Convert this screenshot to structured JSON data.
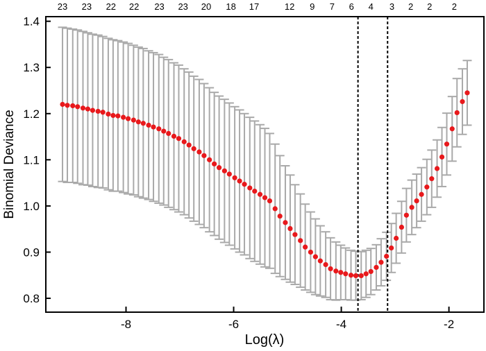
{
  "chart_data": {
    "type": "scatter",
    "xlabel": "Log(λ)",
    "ylabel": "Binomial Deviance",
    "xlim": [
      -9.49,
      -1.35
    ],
    "ylim": [
      0.77,
      1.41
    ],
    "grid": false,
    "x_ticks": [
      -8,
      -6,
      -4,
      -2
    ],
    "x_tick_labels": [
      "-8",
      "-6",
      "-4",
      "-2"
    ],
    "y_ticks": [
      0.8,
      0.9,
      1.0,
      1.1,
      1.2,
      1.3,
      1.4
    ],
    "y_tick_labels": [
      "0.8",
      "0.9",
      "1.0",
      "1.1",
      "1.2",
      "1.3",
      "1.4"
    ],
    "top_axis": {
      "labels": [
        "23",
        "23",
        "22",
        "22",
        "23",
        "23",
        "20",
        "18",
        "17",
        "12",
        "9",
        "7",
        "6",
        "4",
        "3",
        "2",
        "2",
        "2"
      ],
      "positions": [
        -9.18,
        -8.73,
        -8.28,
        -7.85,
        -7.38,
        -6.94,
        -6.51,
        -6.05,
        -5.62,
        -4.96,
        -4.54,
        -4.17,
        -3.81,
        -3.45,
        -3.06,
        -2.71,
        -2.36,
        -1.9
      ]
    },
    "vlines": [
      -3.69,
      -3.14
    ],
    "x": [
      -9.18,
      -9.09,
      -8.99,
      -8.9,
      -8.8,
      -8.71,
      -8.62,
      -8.52,
      -8.43,
      -8.33,
      -8.24,
      -8.15,
      -8.05,
      -7.96,
      -7.86,
      -7.77,
      -7.68,
      -7.58,
      -7.49,
      -7.39,
      -7.3,
      -7.21,
      -7.11,
      -7.02,
      -6.92,
      -6.83,
      -6.74,
      -6.64,
      -6.55,
      -6.45,
      -6.36,
      -6.27,
      -6.17,
      -6.08,
      -5.98,
      -5.89,
      -5.8,
      -5.7,
      -5.61,
      -5.51,
      -5.42,
      -5.33,
      -5.23,
      -5.14,
      -5.04,
      -4.95,
      -4.86,
      -4.76,
      -4.67,
      -4.57,
      -4.48,
      -4.39,
      -4.29,
      -4.2,
      -4.1,
      -4.01,
      -3.92,
      -3.82,
      -3.73,
      -3.63,
      -3.54,
      -3.45,
      -3.35,
      -3.26,
      -3.16,
      -3.07,
      -2.98,
      -2.88,
      -2.79,
      -2.69,
      -2.6,
      -2.51,
      -2.41,
      -2.32,
      -2.22,
      -2.13,
      -2.04,
      -1.94,
      -1.85,
      -1.75,
      -1.66
    ],
    "mean": [
      1.22,
      1.218,
      1.217,
      1.215,
      1.212,
      1.21,
      1.207,
      1.205,
      1.203,
      1.199,
      1.196,
      1.195,
      1.192,
      1.189,
      1.186,
      1.182,
      1.179,
      1.175,
      1.171,
      1.167,
      1.162,
      1.157,
      1.151,
      1.146,
      1.139,
      1.132,
      1.124,
      1.117,
      1.109,
      1.1,
      1.091,
      1.083,
      1.076,
      1.069,
      1.061,
      1.054,
      1.047,
      1.039,
      1.032,
      1.025,
      1.018,
      1.011,
      0.994,
      0.978,
      0.964,
      0.951,
      0.938,
      0.925,
      0.911,
      0.9,
      0.89,
      0.881,
      0.873,
      0.864,
      0.859,
      0.856,
      0.853,
      0.85,
      0.849,
      0.849,
      0.853,
      0.858,
      0.867,
      0.878,
      0.891,
      0.909,
      0.93,
      0.954,
      0.98,
      0.997,
      1.011,
      1.025,
      1.041,
      1.059,
      1.081,
      1.106,
      1.134,
      1.167,
      1.202,
      1.226,
      1.245
    ],
    "error": [
      0.167,
      0.167,
      0.166,
      0.166,
      0.166,
      0.165,
      0.165,
      0.165,
      0.164,
      0.164,
      0.164,
      0.163,
      0.163,
      0.163,
      0.162,
      0.162,
      0.162,
      0.161,
      0.161,
      0.161,
      0.16,
      0.16,
      0.159,
      0.159,
      0.158,
      0.158,
      0.157,
      0.157,
      0.156,
      0.156,
      0.155,
      0.155,
      0.155,
      0.154,
      0.154,
      0.154,
      0.153,
      0.153,
      0.152,
      0.151,
      0.15,
      0.146,
      0.14,
      0.131,
      0.123,
      0.116,
      0.108,
      0.101,
      0.093,
      0.087,
      0.082,
      0.076,
      0.071,
      0.067,
      0.063,
      0.059,
      0.056,
      0.054,
      0.053,
      0.052,
      0.051,
      0.05,
      0.049,
      0.051,
      0.052,
      0.053,
      0.054,
      0.056,
      0.058,
      0.059,
      0.058,
      0.058,
      0.06,
      0.062,
      0.062,
      0.064,
      0.067,
      0.07,
      0.074,
      0.071,
      0.07
    ],
    "colors": {
      "points": "#e8191c",
      "error_bars": "#a9a9a9",
      "vlines": "#000000"
    }
  }
}
